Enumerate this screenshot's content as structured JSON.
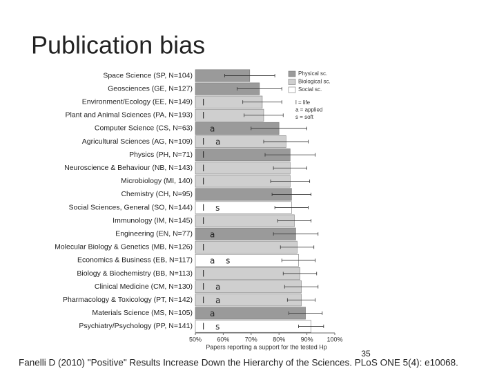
{
  "slide": {
    "title": "Publication bias",
    "page_number": "35",
    "citation": "Fanelli D (2010) \"Positive\" Results Increase Down the Hierarchy of the Sciences. PLoS ONE 5(4): e10068."
  },
  "chart_data": {
    "type": "bar",
    "orientation": "horizontal",
    "xlabel": "Papers reporting a support for the tested Hp",
    "categories": [
      "Space Science (SP, N=104)",
      "Geosciences (GE, N=127)",
      "Environment/Ecology (EE, N=149)",
      "Plant and Animal Sciences (PA, N=193)",
      "Computer Science (CS, N=63)",
      "Agricultural Sciences (AG, N=109)",
      "Physics (PH, N=71)",
      "Neuroscience & Behaviour (NB, N=143)",
      "Microbiology (MI, 140)",
      "Chemistry (CH, N=95)",
      "Social Sciences, General (SO, N=144)",
      "Immunology (IM, N=145)",
      "Engineering (EN, N=77)",
      "Molecular Biology & Genetics (MB, N=126)",
      "Economics & Business (EB, N=117)",
      "Biology & Biochemistry (BB, N=113)",
      "Clinical Medicine (CM, N=130)",
      "Pharmacology & Toxicology (PT, N=142)",
      "Materials Science (MS, N=105)",
      "Psychiatry/Psychology (PP, N=141)"
    ],
    "values": [
      69.5,
      73,
      74,
      74.5,
      80,
      82.5,
      84,
      84,
      84,
      84.5,
      84.5,
      85.5,
      86,
      86.5,
      87,
      87.5,
      88,
      88,
      89.5,
      91.5
    ],
    "errors": [
      9,
      8,
      7,
      7,
      10,
      8,
      9,
      6,
      7,
      7,
      6,
      6,
      8,
      6,
      6,
      6,
      6,
      5,
      6,
      4.5
    ],
    "colors": [
      "#9a9a9a",
      "#9a9a9a",
      "#cfcfcf",
      "#cfcfcf",
      "#9a9a9a",
      "#cfcfcf",
      "#9a9a9a",
      "#cfcfcf",
      "#cfcfcf",
      "#9a9a9a",
      "#ffffff",
      "#cfcfcf",
      "#9a9a9a",
      "#cfcfcf",
      "#ffffff",
      "#cfcfcf",
      "#cfcfcf",
      "#cfcfcf",
      "#9a9a9a",
      "#ffffff"
    ],
    "tags": [
      null,
      null,
      "l",
      "l",
      "a",
      "l a",
      "l",
      "l",
      "l",
      null,
      "l s",
      "l",
      "a",
      "l",
      "a s",
      "l",
      "l a",
      "l a",
      "a",
      "l s"
    ],
    "legend": [
      {
        "name": "Physical sc.",
        "color": "#9a9a9a"
      },
      {
        "name": "Biological sc.",
        "color": "#cfcfcf"
      },
      {
        "name": "Social sc.",
        "color": "#ffffff"
      }
    ],
    "tag_legend": [
      "l = life",
      "a = applied",
      "s = soft"
    ],
    "xlim": [
      50,
      100
    ],
    "xticks": [
      {
        "value": 50,
        "label": "50%"
      },
      {
        "value": 60,
        "label": "60%"
      },
      {
        "value": 70,
        "label": "70%"
      },
      {
        "value": 80,
        "label": "80%"
      },
      {
        "value": 90,
        "label": "90%"
      },
      {
        "value": 100,
        "label": "100%"
      }
    ]
  }
}
